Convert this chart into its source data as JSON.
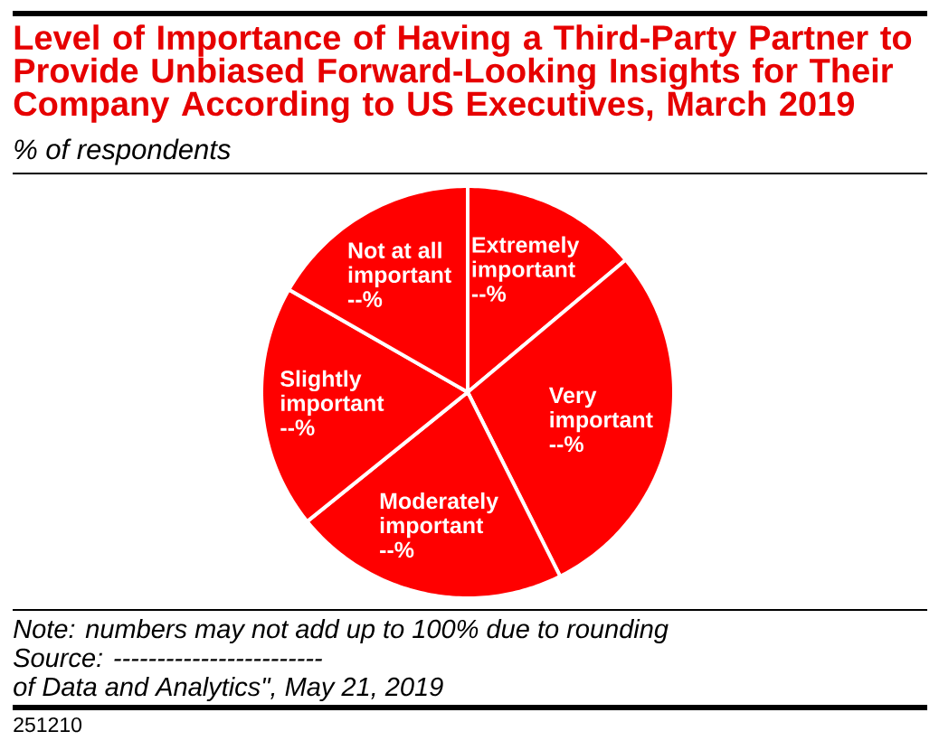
{
  "chart_data": {
    "type": "pie",
    "title": "Level of Importance of Having a Third-Party Partner to Provide Unbiased Forward-Looking Insights for Their Company According to US Executives, March 2019",
    "subtitle": "% of respondents",
    "categories": [
      "Extremely important",
      "Very important",
      "Moderately important",
      "Slightly important",
      "Not at all important"
    ],
    "values": [
      13.9,
      28.7,
      21.6,
      19.1,
      16.7
    ],
    "colors": [
      "#ff0000",
      "#ff0000",
      "#ff0000",
      "#ff0000",
      "#ff0000"
    ],
    "value_labels": [
      "--%",
      "--%",
      "--%",
      "--%",
      "--%"
    ],
    "annotations": [
      "Note: numbers may not add up to 100% due to rounding",
      "Source: ------------------------",
      "of Data and Analytics\", May 21, 2019",
      "251210"
    ]
  }
}
